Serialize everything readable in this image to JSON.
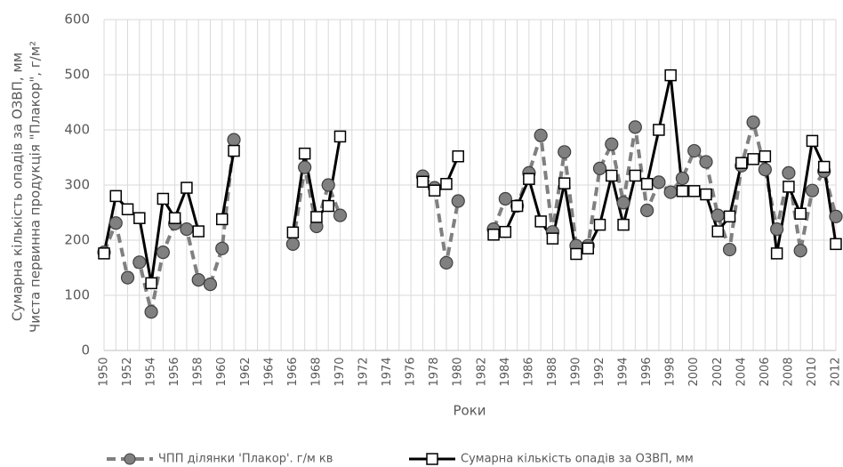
{
  "chart_data": {
    "type": "line",
    "xlabel": "Роки",
    "ylabel": [
      "Сумарна кількість опадів за ОЗВП, мм",
      "Чиста первинна продукція \"Плакор\", г/м²"
    ],
    "x": [
      1950,
      1951,
      1952,
      1953,
      1954,
      1955,
      1956,
      1957,
      1958,
      1959,
      1960,
      1961,
      1962,
      1963,
      1964,
      1965,
      1966,
      1967,
      1968,
      1969,
      1970,
      1971,
      1972,
      1973,
      1974,
      1975,
      1976,
      1977,
      1978,
      1979,
      1980,
      1981,
      1982,
      1983,
      1984,
      1985,
      1986,
      1987,
      1988,
      1989,
      1990,
      1991,
      1992,
      1993,
      1994,
      1995,
      1996,
      1997,
      1998,
      1999,
      2000,
      2001,
      2002,
      2003,
      2004,
      2005,
      2006,
      2007,
      2008,
      2009,
      2010,
      2011,
      2012
    ],
    "series": [
      {
        "name": "ЧПП ділянки 'Плакор'. г/м кв",
        "color": "#808080",
        "values": [
          178,
          231,
          132,
          160,
          70,
          178,
          230,
          220,
          128,
          120,
          185,
          382,
          null,
          null,
          null,
          null,
          193,
          332,
          225,
          300,
          245,
          null,
          null,
          null,
          null,
          null,
          null,
          316,
          295,
          159,
          271,
          null,
          null,
          220,
          275,
          262,
          322,
          390,
          215,
          360,
          190,
          190,
          330,
          374,
          268,
          405,
          254,
          305,
          287,
          312,
          362,
          342,
          245,
          183,
          335,
          414,
          328,
          220,
          322,
          181,
          290,
          325,
          243
        ]
      },
      {
        "name": "Сумарна кількість опадів за ОЗВП, мм",
        "color": "#000000",
        "values": [
          176,
          280,
          256,
          240,
          122,
          275,
          240,
          295,
          216,
          null,
          238,
          362,
          null,
          null,
          null,
          null,
          214,
          357,
          242,
          262,
          388,
          null,
          null,
          null,
          null,
          null,
          null,
          306,
          290,
          302,
          352,
          null,
          null,
          210,
          215,
          262,
          311,
          234,
          203,
          303,
          175,
          185,
          228,
          317,
          228,
          317,
          302,
          400,
          499,
          289,
          289,
          283,
          216,
          243,
          340,
          347,
          352,
          176,
          297,
          248,
          380,
          333,
          193
        ]
      }
    ],
    "xlim": [
      1950,
      2012
    ],
    "xticks": [
      1950,
      1952,
      1954,
      1956,
      1958,
      1960,
      1962,
      1964,
      1966,
      1968,
      1970,
      1972,
      1974,
      1976,
      1978,
      1980,
      1982,
      1984,
      1986,
      1988,
      1990,
      1992,
      1994,
      1996,
      1998,
      2000,
      2002,
      2004,
      2006,
      2008,
      2010,
      2012
    ],
    "ylim": [
      0,
      600
    ],
    "yticks": [
      0,
      100,
      200,
      300,
      400,
      500,
      600
    ],
    "grid": true
  }
}
